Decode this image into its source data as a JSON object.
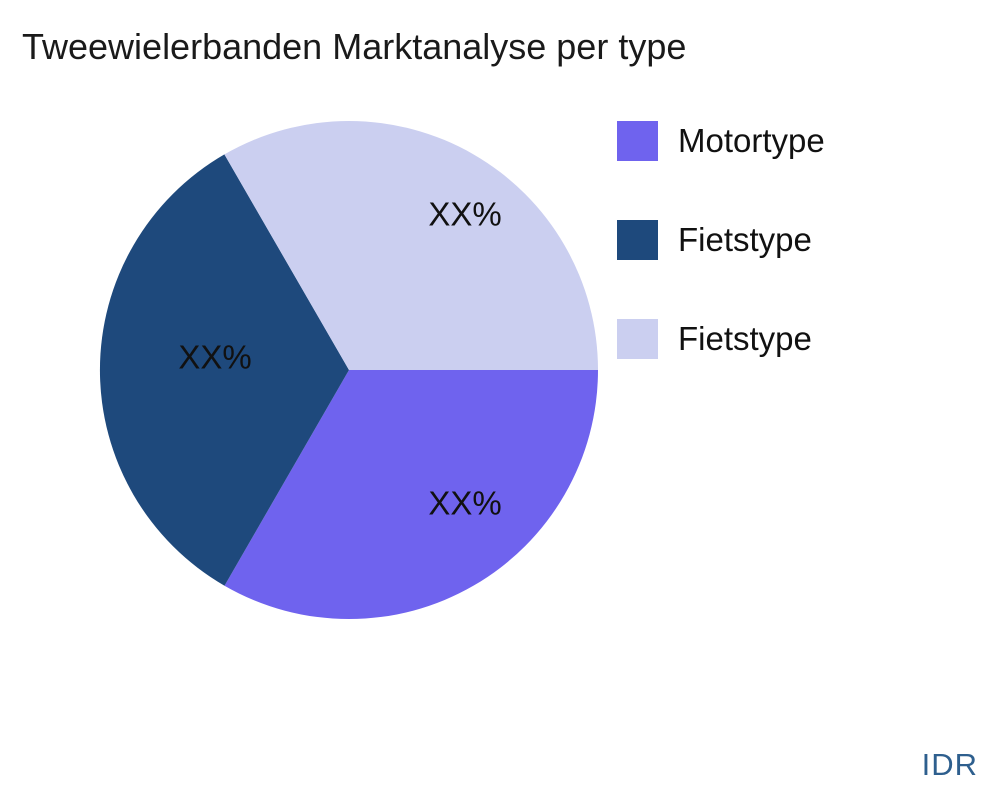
{
  "chart_data": {
    "type": "pie",
    "title": "Tweewielerbanden Marktanalyse per type",
    "slices": [
      {
        "label": "Motortype",
        "value": 33.33,
        "display_label": "XX%",
        "color": "#6F63EE"
      },
      {
        "label": "Fietstype",
        "value": 33.33,
        "display_label": "XX%",
        "color": "#1E497C"
      },
      {
        "label": "Fietstype",
        "value": 33.34,
        "display_label": "XX%",
        "color": "#CBCFF0"
      }
    ],
    "start_angle_deg": 0,
    "direction": "clockwise",
    "legend_position": "right",
    "background_color": "#FFFFFF",
    "slice_label_color": "#111111"
  },
  "legend": {
    "items": [
      {
        "label": "Motortype",
        "color": "#6F63EE"
      },
      {
        "label": "Fietstype",
        "color": "#1E497C"
      },
      {
        "label": "Fietstype",
        "color": "#CBCFF0"
      }
    ]
  },
  "watermark": {
    "text": "IDR",
    "color": "#2E5F8E"
  }
}
